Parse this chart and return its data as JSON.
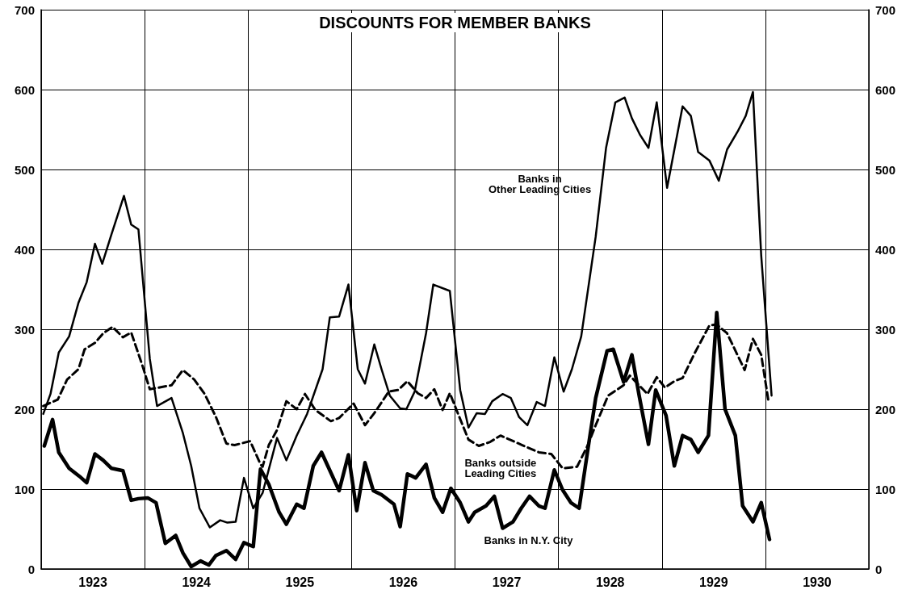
{
  "chart_data": {
    "type": "line",
    "title": "DISCOUNTS FOR MEMBER BANKS",
    "xlim": [
      1923,
      1931
    ],
    "xticks": [
      {
        "value": 1923,
        "label": null
      },
      {
        "value": 1923.5,
        "label": "1923"
      },
      {
        "value": 1924,
        "label": null
      },
      {
        "value": 1924.5,
        "label": "1924"
      },
      {
        "value": 1925,
        "label": null
      },
      {
        "value": 1925.5,
        "label": "1925"
      },
      {
        "value": 1926,
        "label": null
      },
      {
        "value": 1926.5,
        "label": "1926"
      },
      {
        "value": 1927,
        "label": null
      },
      {
        "value": 1927.5,
        "label": "1927"
      },
      {
        "value": 1928,
        "label": null
      },
      {
        "value": 1928.5,
        "label": "1928"
      },
      {
        "value": 1929,
        "label": null
      },
      {
        "value": 1929.5,
        "label": "1929"
      },
      {
        "value": 1930,
        "label": null
      },
      {
        "value": 1930.5,
        "label": "1930"
      },
      {
        "value": 1931,
        "label": null
      }
    ],
    "ylim": [
      0,
      700
    ],
    "yticks": [
      0,
      100,
      200,
      300,
      400,
      500,
      600,
      700
    ],
    "y2lim": [
      0,
      700
    ],
    "y2ticks": [
      0,
      100,
      200,
      300,
      400,
      500,
      600,
      700
    ],
    "grid": true,
    "marker": "none",
    "series": [
      {
        "name": "Banks in Other Leading Cities",
        "color": "#000000",
        "line_style": "solid",
        "x": [
          1923.02,
          1923.09,
          1923.17,
          1923.27,
          1923.36,
          1923.44,
          1923.52,
          1923.59,
          1923.68,
          1923.8,
          1923.87,
          1923.94,
          1924.05,
          1924.12,
          1924.26,
          1924.37,
          1924.45,
          1924.53,
          1924.63,
          1924.73,
          1924.8,
          1924.88,
          1924.96,
          1925.05,
          1925.14,
          1925.28,
          1925.37,
          1925.47,
          1925.57,
          1925.72,
          1925.79,
          1925.88,
          1925.97,
          1926.06,
          1926.13,
          1926.22,
          1926.29,
          1926.37,
          1926.47,
          1926.53,
          1926.61,
          1926.72,
          1926.79,
          1926.95,
          1927.05,
          1927.13,
          1927.21,
          1927.29,
          1927.36,
          1927.46,
          1927.54,
          1927.62,
          1927.7,
          1927.79,
          1927.87,
          1927.96,
          1928.05,
          1928.13,
          1928.22,
          1928.36,
          1928.46,
          1928.55,
          1928.64,
          1928.71,
          1928.79,
          1928.87,
          1928.95,
          1929.05,
          1929.2,
          1929.28,
          1929.35,
          1929.46,
          1929.55,
          1929.63,
          1929.73,
          1929.81,
          1929.88,
          1929.96,
          1930.06
        ],
        "values": [
          194,
          219,
          271,
          291,
          333,
          359,
          407,
          382,
          419,
          467,
          431,
          425,
          263,
          204,
          214,
          170,
          129,
          76,
          52,
          61,
          58,
          59,
          114,
          76,
          95,
          164,
          136,
          167,
          194,
          250,
          315,
          316,
          356,
          250,
          232,
          281,
          250,
          217,
          201,
          200,
          222,
          295,
          356,
          348,
          224,
          177,
          195,
          194,
          210,
          219,
          214,
          190,
          180,
          209,
          204,
          265,
          222,
          250,
          291,
          416,
          527,
          584,
          590,
          564,
          543,
          527,
          584,
          477,
          579,
          567,
          522,
          511,
          486,
          525,
          547,
          567,
          597,
          392,
          217
        ]
      },
      {
        "name": "Banks outside Leading Cities",
        "color": "#000000",
        "line_style": "dashed",
        "x": [
          1923.02,
          1923.16,
          1923.25,
          1923.36,
          1923.42,
          1923.52,
          1923.6,
          1923.69,
          1923.79,
          1923.87,
          1923.98,
          1924.05,
          1924.26,
          1924.37,
          1924.48,
          1924.58,
          1924.69,
          1924.79,
          1924.87,
          1925.02,
          1925.12,
          1925.14,
          1925.2,
          1925.28,
          1925.37,
          1925.47,
          1925.55,
          1925.65,
          1925.8,
          1925.88,
          1926.02,
          1926.13,
          1926.22,
          1926.36,
          1926.45,
          1926.54,
          1926.64,
          1926.72,
          1926.8,
          1926.88,
          1926.95,
          1927.03,
          1927.13,
          1927.23,
          1927.34,
          1927.44,
          1927.65,
          1927.81,
          1927.93,
          1928.04,
          1928.18,
          1928.28,
          1928.36,
          1928.48,
          1928.63,
          1928.69,
          1928.86,
          1928.95,
          1929.03,
          1929.12,
          1929.2,
          1929.32,
          1929.46,
          1929.53,
          1929.63,
          1929.8,
          1929.88,
          1929.96,
          1930.03
        ],
        "values": [
          204,
          212,
          237,
          250,
          275,
          283,
          295,
          303,
          290,
          296,
          254,
          225,
          230,
          249,
          237,
          219,
          190,
          157,
          155,
          160,
          131,
          128,
          155,
          174,
          210,
          200,
          219,
          199,
          185,
          189,
          207,
          180,
          195,
          222,
          224,
          235,
          220,
          214,
          225,
          199,
          220,
          194,
          162,
          154,
          159,
          167,
          155,
          146,
          144,
          126,
          128,
          154,
          180,
          217,
          230,
          242,
          219,
          240,
          227,
          235,
          239,
          271,
          305,
          306,
          295,
          249,
          288,
          268,
          210
        ]
      },
      {
        "name": "Banks in N.Y. City",
        "color": "#000000",
        "line_style": "solid",
        "x": [
          1923.03,
          1923.11,
          1923.17,
          1923.27,
          1923.37,
          1923.44,
          1923.52,
          1923.6,
          1923.68,
          1923.79,
          1923.87,
          1923.94,
          1924.03,
          1924.11,
          1924.2,
          1924.3,
          1924.37,
          1924.45,
          1924.54,
          1924.62,
          1924.69,
          1924.79,
          1924.88,
          1924.96,
          1925.05,
          1925.12,
          1925.2,
          1925.3,
          1925.37,
          1925.47,
          1925.54,
          1925.63,
          1925.71,
          1925.88,
          1925.97,
          1926.05,
          1926.13,
          1926.21,
          1926.29,
          1926.41,
          1926.47,
          1926.54,
          1926.62,
          1926.72,
          1926.8,
          1926.88,
          1926.96,
          1927.05,
          1927.13,
          1927.19,
          1927.3,
          1927.38,
          1927.46,
          1927.56,
          1927.64,
          1927.72,
          1927.81,
          1927.87,
          1927.96,
          1928.04,
          1928.12,
          1928.2,
          1928.28,
          1928.36,
          1928.47,
          1928.53,
          1928.63,
          1928.71,
          1928.78,
          1928.87,
          1928.94,
          1929.04,
          1929.12,
          1929.2,
          1929.28,
          1929.35,
          1929.45,
          1929.53,
          1929.61,
          1929.71,
          1929.78,
          1929.88,
          1929.96,
          1930.04
        ],
        "values": [
          154,
          187,
          146,
          126,
          116,
          108,
          144,
          136,
          126,
          123,
          86,
          88,
          89,
          83,
          32,
          42,
          20,
          3,
          10,
          5,
          17,
          23,
          12,
          33,
          28,
          125,
          106,
          71,
          56,
          81,
          76,
          129,
          146,
          98,
          143,
          73,
          133,
          98,
          93,
          81,
          53,
          119,
          114,
          131,
          89,
          71,
          101,
          83,
          59,
          71,
          79,
          91,
          51,
          59,
          76,
          91,
          79,
          76,
          124,
          99,
          83,
          76,
          146,
          214,
          273,
          275,
          234,
          268,
          217,
          156,
          224,
          192,
          129,
          167,
          162,
          146,
          167,
          321,
          200,
          167,
          79,
          59,
          83,
          37
        ]
      }
    ]
  }
}
